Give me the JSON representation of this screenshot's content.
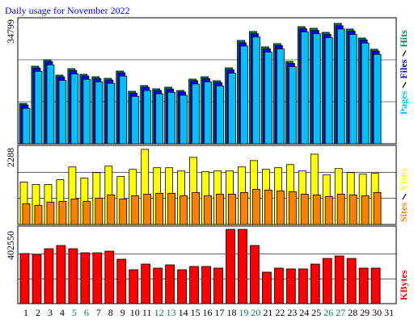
{
  "chart_data": [
    {
      "type": "bar",
      "title": "Daily usage for November 2022",
      "title_color": "#0000ff",
      "ylim": [
        0,
        34799
      ],
      "yticks": [
        34799
      ],
      "grid": true,
      "series": [
        {
          "name": "Hits",
          "color": "#00805c",
          "values": [
            11150,
            21410,
            23200,
            18960,
            20750,
            19180,
            18510,
            18070,
            20080,
            14500,
            16060,
            15170,
            15620,
            14720,
            17850,
            18510,
            17400,
            20970,
            28550,
            31010,
            26770,
            27660,
            22750,
            32350,
            31900,
            30780,
            33240,
            31680,
            29220,
            26100,
            null
          ]
        },
        {
          "name": "Files",
          "color": "#0000ff",
          "values": [
            10700,
            20900,
            22700,
            18500,
            20200,
            18700,
            18000,
            17600,
            19600,
            14000,
            15600,
            14700,
            15100,
            14300,
            17400,
            18000,
            16900,
            20400,
            27900,
            30400,
            26200,
            27100,
            22200,
            31800,
            31300,
            30200,
            32600,
            31100,
            28700,
            25600,
            null
          ]
        },
        {
          "name": "Pages",
          "color": "#00c0ff",
          "values": [
            9750,
            20000,
            21800,
            17500,
            19300,
            17800,
            17100,
            16700,
            18700,
            13100,
            14700,
            13800,
            14200,
            13400,
            16500,
            17100,
            16000,
            19500,
            27000,
            29500,
            25300,
            26200,
            21300,
            30900,
            30400,
            29300,
            31700,
            30200,
            27800,
            24700,
            null
          ]
        }
      ]
    },
    {
      "type": "bar",
      "ylim": [
        0,
        2288
      ],
      "yticks": [
        2288
      ],
      "grid": true,
      "series": [
        {
          "name": "Visits",
          "color": "#ffff00",
          "values": [
            1238,
            1168,
            1168,
            1308,
            1681,
            1354,
            1518,
            1705,
            1401,
            1611,
            2195,
            1658,
            1658,
            1564,
            1961,
            1541,
            1564,
            1564,
            1681,
            1868,
            1611,
            1658,
            1751,
            1564,
            2055,
            1448,
            1634,
            1518,
            1471,
            1494,
            null
          ]
        },
        {
          "name": "Sites",
          "color": "#ff8000",
          "values": [
            607,
            560,
            654,
            677,
            747,
            677,
            771,
            864,
            747,
            841,
            887,
            911,
            911,
            841,
            934,
            841,
            887,
            887,
            934,
            1027,
            1004,
            981,
            957,
            887,
            864,
            817,
            887,
            864,
            841,
            934,
            null
          ]
        }
      ]
    },
    {
      "type": "bar",
      "ylim": [
        0,
        402550
      ],
      "yticks": [
        402550
      ],
      "grid": true,
      "categories": [
        "1",
        "2",
        "3",
        "4",
        "5",
        "6",
        "7",
        "8",
        "9",
        "10",
        "11",
        "12",
        "13",
        "14",
        "15",
        "16",
        "17",
        "18",
        "19",
        "20",
        "21",
        "22",
        "23",
        "24",
        "25",
        "26",
        "27",
        "28",
        "29",
        "30",
        "31"
      ],
      "category_colors": [
        "#000000",
        "#000000",
        "#000000",
        "#000000",
        "#00805c",
        "#00805c",
        "#000000",
        "#000000",
        "#000000",
        "#000000",
        "#000000",
        "#00805c",
        "#00805c",
        "#000000",
        "#000000",
        "#000000",
        "#000000",
        "#000000",
        "#00805c",
        "#00805c",
        "#000000",
        "#000000",
        "#000000",
        "#000000",
        "#000000",
        "#00805c",
        "#00805c",
        "#000000",
        "#000000",
        "#000000",
        "#000000"
      ],
      "series": [
        {
          "name": "KBytes",
          "color": "#ff0000",
          "values": [
            271281,
            266906,
            297534,
            315036,
            297534,
            275657,
            275657,
            284408,
            240653,
            183771,
            214400,
            192522,
            210024,
            183771,
            201273,
            201273,
            192522,
            402550,
            402550,
            315036,
            170645,
            192522,
            188147,
            188147,
            214400,
            245028,
            258155,
            245028,
            192522,
            192522,
            null
          ]
        }
      ]
    }
  ]
}
